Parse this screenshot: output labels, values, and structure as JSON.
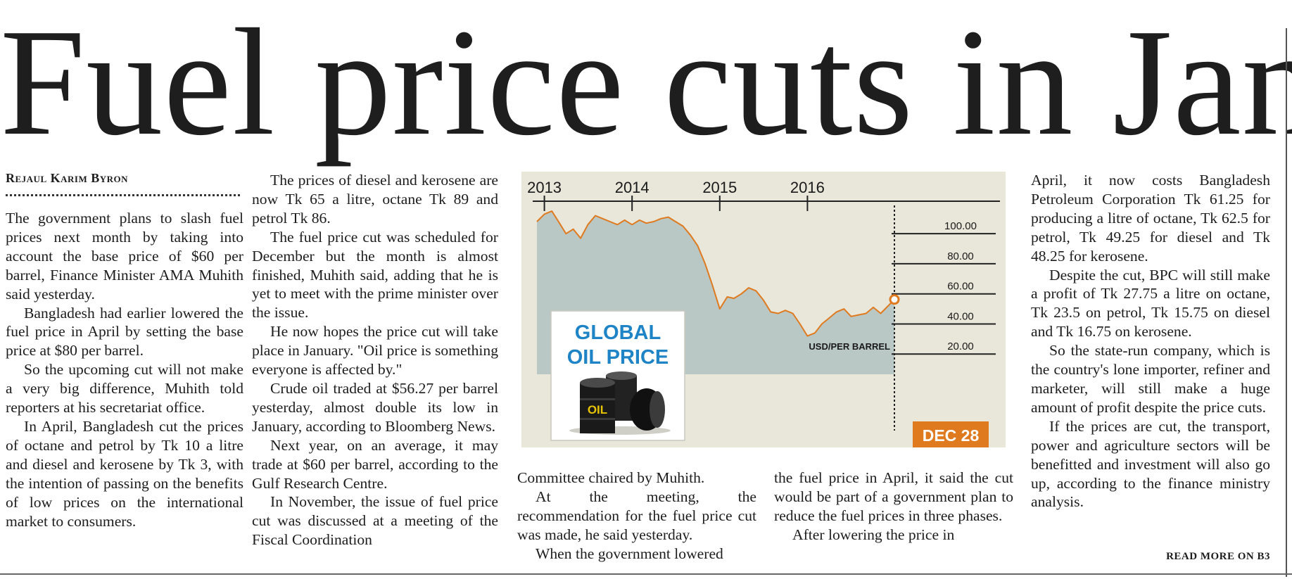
{
  "headline": "Fuel price cuts in Jan",
  "byline": "Rejaul Karim Byron",
  "columns": {
    "col1": [
      "The government plans to slash fuel prices next month by taking into account the base price of $60 per barrel, Finance Minister AMA Muhith said yesterday.",
      "Bangladesh had earlier lowered the fuel price in April by setting the base price at $80 per barrel.",
      "So the upcoming cut will not make a very big difference, Muhith told reporters at his secretariat office.",
      "In April, Bangladesh cut the prices of octane and petrol by Tk 10 a litre and diesel and kerosene by Tk 3, with the intention of passing on the benefits of low prices on the international market to consumers."
    ],
    "col2": [
      "The prices of diesel and kerosene are now Tk 65 a litre, octane Tk 89 and petrol Tk 86.",
      "The fuel price cut was scheduled for December but the month is almost finished, Muhith said, adding that he is yet to meet with the prime minister over the issue.",
      "He now hopes the price cut will take place in January. \"Oil price is something everyone is affected by.\"",
      "Crude oil traded at $56.27 per barrel yesterday, almost double its low in January, according to Bloomberg News.",
      "Next year, on an average, it may trade at $60 per barrel, according to the Gulf Research Centre.",
      "In November, the issue of fuel price cut was discussed at a meeting of the Fiscal Coordination"
    ],
    "col3": [
      "Committee chaired by Muhith.",
      "At the meeting, the recommendation for the fuel price cut was made, he said yesterday.",
      "When the government lowered"
    ],
    "col4": [
      "the fuel price in April, it said the cut would be part of a government plan to reduce the fuel prices in three phases.",
      "After lowering the price in"
    ],
    "col5": [
      "April, it now costs Bangladesh Petroleum Corporation Tk 61.25 for producing a litre of octane, Tk 62.5 for petrol, Tk 49.25 for diesel and Tk 48.25 for kerosene.",
      "Despite the cut, BPC will still make a profit of Tk 27.75 a litre on octane, Tk 23.5 on petrol, Tk 15.75 on diesel and Tk 16.75 on kerosene.",
      "So the state-run company, which is the country's lone importer, refiner and marketer, will still make a huge amount of profit despite the price cuts.",
      "If the prices are cut, the transport, power and agriculture sectors will be benefitted and investment will also go up, according to the finance ministry analysis."
    ]
  },
  "read_more": "READ MORE ON B3",
  "chart_data": {
    "type": "area",
    "title": "GLOBAL OIL PRICE",
    "unit_label": "USD/PER BARREL",
    "end_marker": "DEC 28",
    "x_ticks": [
      "2013",
      "2014",
      "2015",
      "2016"
    ],
    "y_ticks": [
      20,
      40,
      60,
      80,
      100
    ],
    "y_tick_labels": [
      "20.00",
      "40.00",
      "60.00",
      "80.00",
      "100.00"
    ],
    "ylim": [
      0,
      130
    ],
    "x_range": [
      "2012-12-01",
      "2016-12-28"
    ],
    "series": [
      {
        "x": [
          "2012-12",
          "2013-01",
          "2013-02",
          "2013-03",
          "2013-04",
          "2013-05",
          "2013-06",
          "2013-07",
          "2013-08",
          "2013-09",
          "2013-10",
          "2013-11",
          "2013-12",
          "2014-01",
          "2014-02",
          "2014-03",
          "2014-04",
          "2014-05",
          "2014-06",
          "2014-07",
          "2014-08",
          "2014-09",
          "2014-10",
          "2014-11",
          "2014-12",
          "2015-01",
          "2015-02",
          "2015-03",
          "2015-04",
          "2015-05",
          "2015-06",
          "2015-07",
          "2015-08",
          "2015-09",
          "2015-10",
          "2015-11",
          "2015-12",
          "2016-01",
          "2016-02",
          "2016-03",
          "2016-04",
          "2016-05",
          "2016-06",
          "2016-07",
          "2016-08",
          "2016-09",
          "2016-10",
          "2016-11",
          "2016-12-28"
        ],
        "values": [
          108,
          113,
          115,
          108,
          100,
          103,
          97,
          106,
          112,
          110,
          108,
          106,
          109,
          106,
          109,
          107,
          108,
          110,
          111,
          108,
          105,
          99,
          92,
          80,
          66,
          50,
          58,
          57,
          60,
          64,
          62,
          56,
          48,
          47,
          49,
          47,
          40,
          32,
          34,
          40,
          44,
          48,
          50,
          45,
          46,
          47,
          51,
          47,
          56.27
        ]
      }
    ],
    "colors": {
      "line": "#e07a1f",
      "fill": "#b9c8c5",
      "panel": "#e8e7da",
      "marker": "#e07a1f",
      "axis": "#222222"
    }
  }
}
